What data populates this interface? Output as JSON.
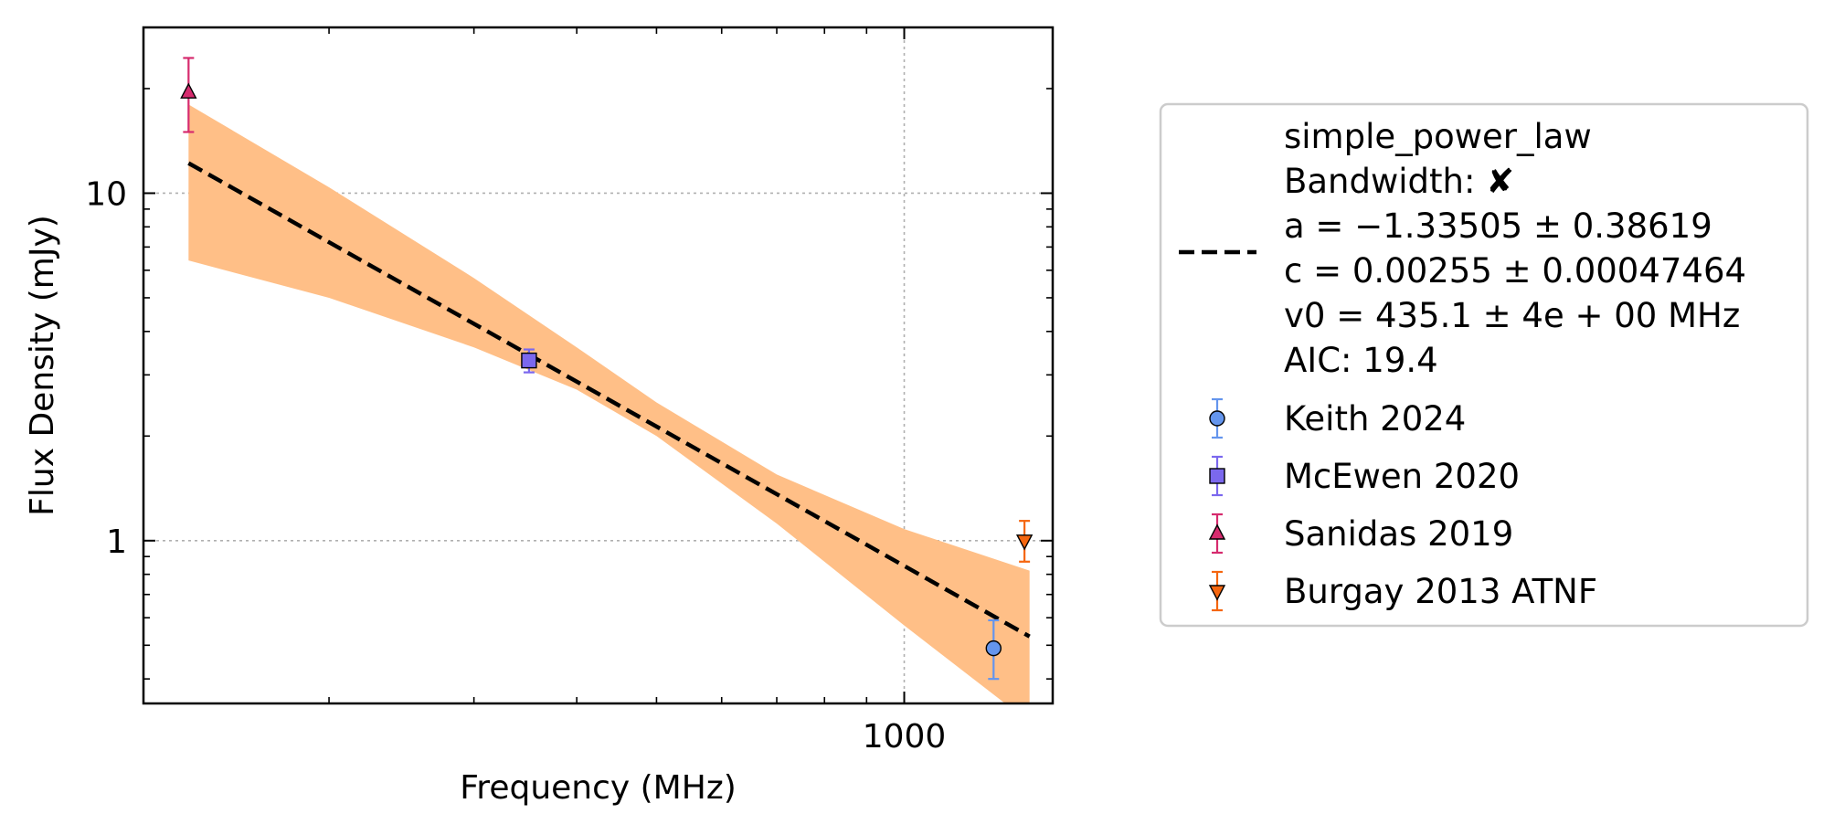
{
  "chart_data": {
    "type": "scatter",
    "xlabel": "Frequency (MHz)",
    "ylabel": "Flux Density (mJy)",
    "x_scale": "log",
    "y_scale": "log",
    "xlim": [
      119,
      1515
    ],
    "ylim": [
      0.34,
      30
    ],
    "x_ticks": [
      {
        "value": 1000,
        "label": "1000"
      }
    ],
    "y_ticks": [
      {
        "value": 1,
        "label": "1"
      },
      {
        "value": 10,
        "label": "10"
      }
    ],
    "grid": true,
    "legend_position": "outside-right",
    "fit": {
      "model": "simple_power_law",
      "bandwidth_label": "Bandwidth: ",
      "bandwidth_mark": "✘",
      "params": [
        "a = −1.33505 ± 0.38619",
        "c = 0.00255 ± 0.00047464",
        "v0 = 435.1 ± 4e + 00 MHz"
      ],
      "aic": "AIC: 19.4",
      "color": "#000000",
      "x_range": [
        135,
        1420
      ],
      "line": [
        {
          "x": 135,
          "y": 12.2
        },
        {
          "x": 1420,
          "y": 0.53
        }
      ],
      "band_color": "#ffbf87",
      "band_upper": [
        {
          "x": 135,
          "y": 18.0
        },
        {
          "x": 200,
          "y": 10.4
        },
        {
          "x": 300,
          "y": 5.7
        },
        {
          "x": 400,
          "y": 3.6
        },
        {
          "x": 500,
          "y": 2.5
        },
        {
          "x": 700,
          "y": 1.55
        },
        {
          "x": 1000,
          "y": 1.08
        },
        {
          "x": 1420,
          "y": 0.82
        }
      ],
      "band_lower": [
        {
          "x": 135,
          "y": 6.4
        },
        {
          "x": 200,
          "y": 5.0
        },
        {
          "x": 300,
          "y": 3.6
        },
        {
          "x": 400,
          "y": 2.72
        },
        {
          "x": 500,
          "y": 2.0
        },
        {
          "x": 700,
          "y": 1.12
        },
        {
          "x": 1000,
          "y": 0.57
        },
        {
          "x": 1420,
          "y": 0.3
        }
      ]
    },
    "series": [
      {
        "name": "Keith 2024",
        "marker": "circle",
        "color": "#6495ed",
        "points": [
          {
            "x": 1284,
            "y": 0.49,
            "y_low": 0.4,
            "y_high": 0.59
          }
        ]
      },
      {
        "name": "McEwen 2020",
        "marker": "square",
        "color": "#7b68ee",
        "points": [
          {
            "x": 350,
            "y": 3.3,
            "y_low": 3.05,
            "y_high": 3.55
          }
        ]
      },
      {
        "name": "Sanidas 2019",
        "marker": "triangle-up",
        "color": "#d62b6e",
        "points": [
          {
            "x": 135,
            "y": 19.5,
            "y_low": 15.0,
            "y_high": 24.5
          }
        ]
      },
      {
        "name": "Burgay 2013 ATNF",
        "marker": "triangle-down",
        "color": "#f5660f",
        "points": [
          {
            "x": 1400,
            "y": 1.0,
            "y_low": 0.87,
            "y_high": 1.14
          }
        ]
      }
    ]
  }
}
